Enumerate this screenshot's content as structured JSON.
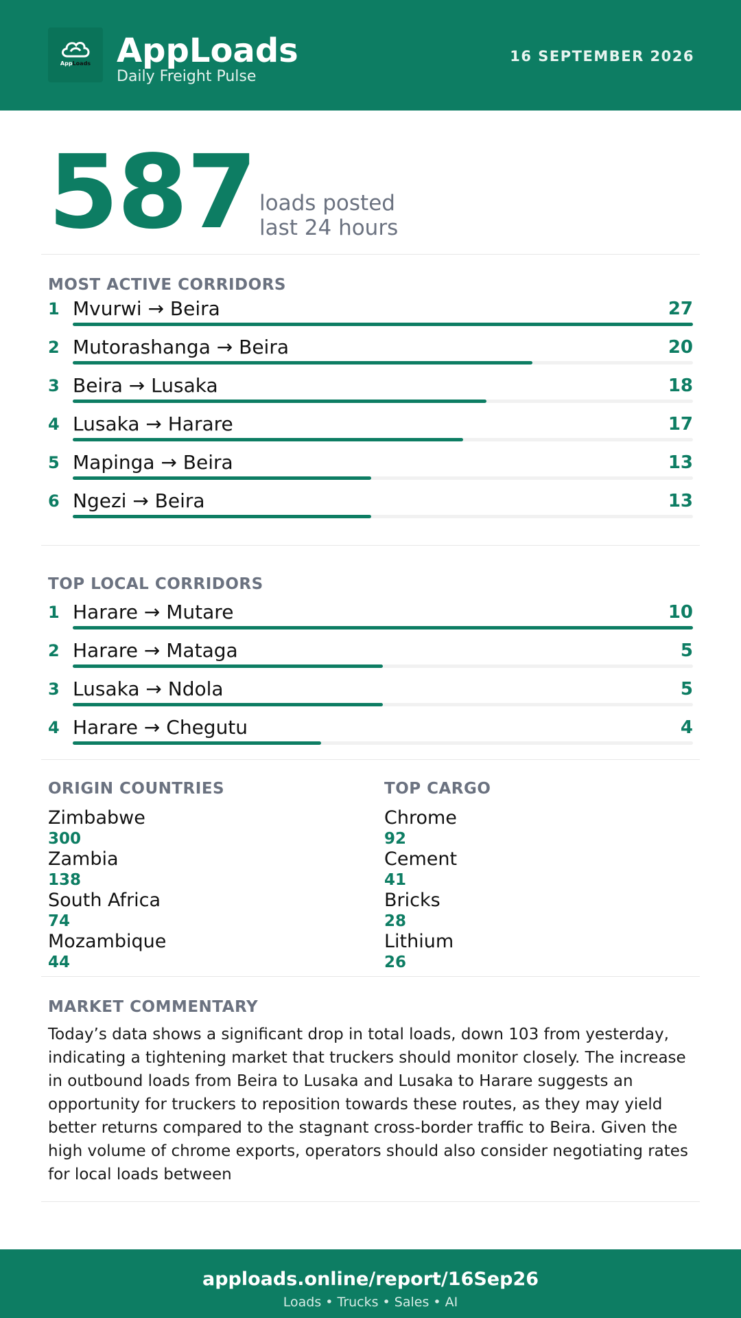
{
  "header": {
    "logo_text_a": "App",
    "logo_text_b": "Loads",
    "app_name": "AppLoads",
    "tagline": "Daily Freight Pulse",
    "date": "16 SEPTEMBER 2026"
  },
  "summary": {
    "total": "587",
    "label_line1": "loads posted",
    "label_line2": "last 24 hours"
  },
  "most_active": {
    "title": "MOST ACTIVE CORRIDORS",
    "max": 27,
    "items": [
      {
        "rank": "1",
        "route": "Mvurwi → Beira",
        "count": "27",
        "value": 27
      },
      {
        "rank": "2",
        "route": "Mutorashanga → Beira",
        "count": "20",
        "value": 20
      },
      {
        "rank": "3",
        "route": "Beira → Lusaka",
        "count": "18",
        "value": 18
      },
      {
        "rank": "4",
        "route": "Lusaka → Harare",
        "count": "17",
        "value": 17
      },
      {
        "rank": "5",
        "route": "Mapinga → Beira",
        "count": "13",
        "value": 13
      },
      {
        "rank": "6",
        "route": "Ngezi → Beira",
        "count": "13",
        "value": 13
      }
    ]
  },
  "top_local": {
    "title": "TOP LOCAL CORRIDORS",
    "max": 10,
    "items": [
      {
        "rank": "1",
        "route": "Harare → Mutare",
        "count": "10",
        "value": 10
      },
      {
        "rank": "2",
        "route": "Harare → Mataga",
        "count": "5",
        "value": 5
      },
      {
        "rank": "3",
        "route": "Lusaka → Ndola",
        "count": "5",
        "value": 5
      },
      {
        "rank": "4",
        "route": "Harare → Chegutu",
        "count": "4",
        "value": 4
      }
    ]
  },
  "origin_countries": {
    "title": "ORIGIN COUNTRIES",
    "items": [
      {
        "name": "Zimbabwe",
        "value": "300"
      },
      {
        "name": "Zambia",
        "value": "138"
      },
      {
        "name": "South Africa",
        "value": "74"
      },
      {
        "name": "Mozambique",
        "value": "44"
      }
    ]
  },
  "top_cargo": {
    "title": "TOP CARGO",
    "items": [
      {
        "name": "Chrome",
        "value": "92"
      },
      {
        "name": "Cement",
        "value": "41"
      },
      {
        "name": "Bricks",
        "value": "28"
      },
      {
        "name": "Lithium",
        "value": "26"
      }
    ]
  },
  "commentary": {
    "title": "MARKET COMMENTARY",
    "text": "Today’s data shows a significant drop in total loads, down 103 from yesterday, indicating a tightening market that truckers should monitor closely. The increase in outbound loads from Beira to Lusaka and Lusaka to Harare suggests an opportunity for truckers to reposition towards these routes, as they may yield better returns compared to the stagnant cross-border traffic to Beira. Given the high volume of chrome exports, operators should also consider negotiating rates for local loads between"
  },
  "footer": {
    "url": "apploads.online/report/16Sep26",
    "sub": "Loads • Trucks • Sales • AI"
  }
}
